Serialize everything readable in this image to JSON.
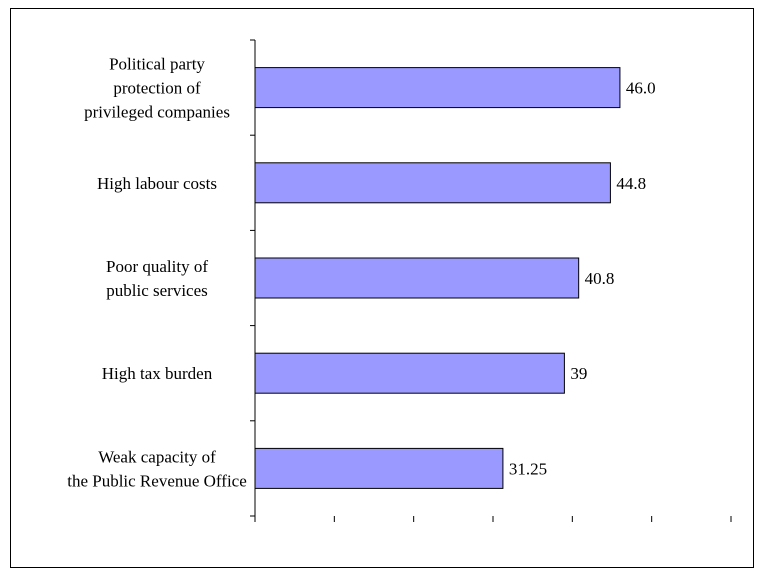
{
  "chart_data": {
    "type": "bar",
    "orientation": "horizontal",
    "categories": [
      [
        "Political party",
        "protection of",
        "privileged companies"
      ],
      [
        "High labour costs"
      ],
      [
        "Poor quality of",
        "public services"
      ],
      [
        "High tax burden"
      ],
      [
        "Weak capacity of",
        "the Public Revenue Office"
      ]
    ],
    "values": [
      46.0,
      44.8,
      40.8,
      39,
      31.25
    ],
    "value_labels": [
      "46.0",
      "44.8",
      "40.8",
      "39",
      "31.25"
    ],
    "title": "",
    "xlabel": "",
    "ylabel": "",
    "xlim": [
      0,
      60
    ],
    "x_tick_count": 7,
    "tick_labels_shown": false,
    "grid": false,
    "legend": "none",
    "colors": {
      "bar_fill": "#9999ff",
      "bar_stroke": "#000000"
    }
  }
}
